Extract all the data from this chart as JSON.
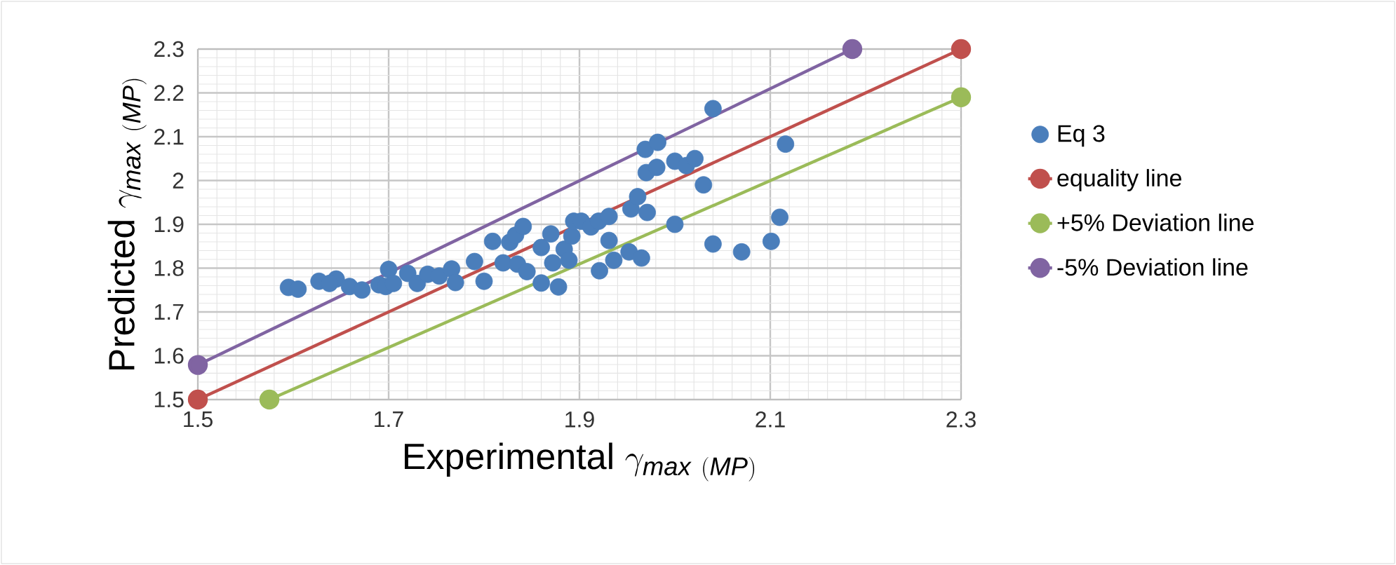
{
  "chart_data": {
    "type": "scatter",
    "xlabel": "\\mathrm{Experimental}\\ \\gamma_{\\mathit{max}\\ \\mathit{(MP)}}",
    "ylabel": "\\mathrm{Predicted}\\ \\gamma_{\\mathit{max}\\ \\mathit{(MP)}}",
    "xlim": [
      1.5,
      2.3
    ],
    "ylim": [
      1.5,
      2.3
    ],
    "xticks": [
      1.5,
      1.7,
      1.9,
      2.1,
      2.3
    ],
    "yticks": [
      1.5,
      1.6,
      1.7,
      1.8,
      1.9,
      2,
      2.1,
      2.2,
      2.3
    ],
    "grid": true,
    "legend": "right",
    "marker": "circle",
    "series": [
      {
        "name": "Eq 3",
        "color": "#4a7ebb",
        "x": [
          1.595,
          1.605,
          1.627,
          1.645,
          1.638,
          1.659,
          1.672,
          1.69,
          1.7,
          1.697,
          1.705,
          1.72,
          1.73,
          1.741,
          1.753,
          1.766,
          1.77,
          1.79,
          1.8,
          1.809,
          1.82,
          1.827,
          1.833,
          1.841,
          1.835,
          1.845,
          1.86,
          1.86,
          1.87,
          1.872,
          1.878,
          1.884,
          1.889,
          1.892,
          1.894,
          1.902,
          1.912,
          1.92,
          1.931,
          1.921,
          1.931,
          1.936,
          1.952,
          1.954,
          1.961,
          1.965,
          1.971,
          1.969,
          1.97,
          1.982,
          1.981,
          2.0,
          2.0,
          2.012,
          2.021,
          2.03,
          2.04,
          2.04,
          2.07,
          2.101,
          2.11,
          2.116
        ],
        "values": [
          1.756,
          1.752,
          1.77,
          1.775,
          1.765,
          1.758,
          1.75,
          1.762,
          1.797,
          1.758,
          1.765,
          1.788,
          1.765,
          1.786,
          1.782,
          1.798,
          1.767,
          1.815,
          1.77,
          1.861,
          1.812,
          1.859,
          1.875,
          1.895,
          1.809,
          1.792,
          1.847,
          1.766,
          1.878,
          1.812,
          1.757,
          1.843,
          1.818,
          1.873,
          1.907,
          1.907,
          1.894,
          1.907,
          1.918,
          1.794,
          1.863,
          1.818,
          1.837,
          1.935,
          1.963,
          1.823,
          1.927,
          2.071,
          2.018,
          2.087,
          2.03,
          2.044,
          1.9,
          2.034,
          2.05,
          1.99,
          2.164,
          1.855,
          1.837,
          1.861,
          1.916,
          2.083
        ]
      },
      {
        "name": "equality line",
        "type": "line",
        "color": "#c0504d",
        "x": [
          1.5,
          2.3
        ],
        "values": [
          1.5,
          2.3
        ]
      },
      {
        "name": "+5% Deviation line",
        "type": "line",
        "color": "#9bbb59",
        "x": [
          1.575,
          2.3
        ],
        "values": [
          1.5,
          2.19
        ]
      },
      {
        "name": "-5% Deviation line",
        "type": "line",
        "color": "#8064a2",
        "x": [
          1.5,
          2.186
        ],
        "values": [
          1.579,
          2.3
        ]
      }
    ]
  }
}
